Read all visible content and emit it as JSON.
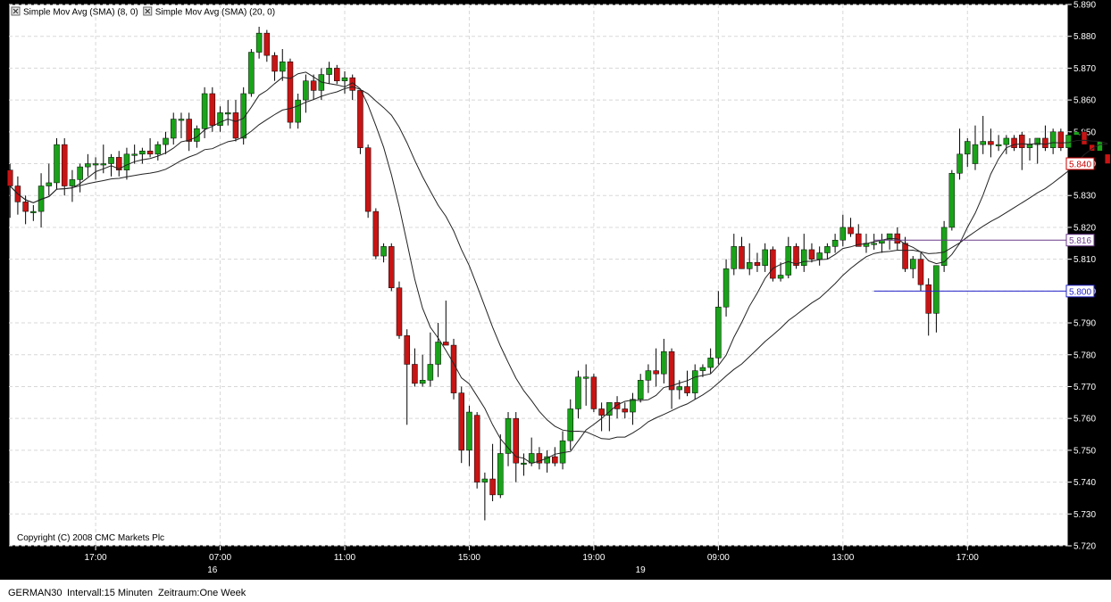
{
  "footer": {
    "symbol": "GERMAN30",
    "interval": "Intervall:15 Minuten",
    "range": "Zeitraum:One Week"
  },
  "chart_data": {
    "type": "candlestick",
    "symbol": "GERMAN30",
    "copyright": "Copyright (C) 2008 CMC Markets Plc",
    "legend": [
      {
        "label": "Simple Mov Avg (SMA) (8, 0)",
        "color": "#000000"
      },
      {
        "label": "Simple Mov Avg (SMA) (20, 0)",
        "color": "#000000"
      }
    ],
    "ylim": [
      5720,
      5890
    ],
    "y_ticks": [
      "5.720",
      "5.730",
      "5.740",
      "5.750",
      "5.760",
      "5.770",
      "5.780",
      "5.790",
      "5.800",
      "5.810",
      "5.820",
      "5.830",
      "5.840",
      "5.850",
      "5.860",
      "5.870",
      "5.880",
      "5.890"
    ],
    "x_ticks": [
      {
        "label": "17:00",
        "bar": 11
      },
      {
        "label": "07:00",
        "bar": 27
      },
      {
        "label": "11:00",
        "bar": 43
      },
      {
        "label": "15:00",
        "bar": 59
      },
      {
        "label": "19:00",
        "bar": 75
      },
      {
        "label": "09:00",
        "bar": 91
      },
      {
        "label": "13:00",
        "bar": 107
      },
      {
        "label": "17:00",
        "bar": 123
      }
    ],
    "date_labels": [
      {
        "label": "16",
        "bar": 26
      },
      {
        "label": "19",
        "bar": 81
      }
    ],
    "price_markers": [
      {
        "label": "5.840",
        "value": 5840,
        "color": "#cc0000"
      },
      {
        "label": "5.816",
        "value": 5816,
        "color": "#6b3a8a",
        "line_from_bar": 111
      },
      {
        "label": "5.800",
        "value": 5800,
        "color": "#2323c8",
        "line_from_bar": 111
      }
    ],
    "candle_colors": {
      "up": "#1aa31a",
      "down": "#c81414",
      "wick": "#000000"
    },
    "candles": [
      {
        "o": 5838,
        "h": 5840,
        "l": 5823,
        "c": 5833
      },
      {
        "o": 5833,
        "h": 5836,
        "l": 5824,
        "c": 5828
      },
      {
        "o": 5828,
        "h": 5830,
        "l": 5821,
        "c": 5825
      },
      {
        "o": 5825,
        "h": 5827,
        "l": 5822,
        "c": 5825
      },
      {
        "o": 5825,
        "h": 5837,
        "l": 5820,
        "c": 5833
      },
      {
        "o": 5833,
        "h": 5840,
        "l": 5830,
        "c": 5834
      },
      {
        "o": 5834,
        "h": 5848,
        "l": 5832,
        "c": 5846
      },
      {
        "o": 5846,
        "h": 5848,
        "l": 5830,
        "c": 5833
      },
      {
        "o": 5833,
        "h": 5838,
        "l": 5828,
        "c": 5835
      },
      {
        "o": 5835,
        "h": 5840,
        "l": 5831,
        "c": 5839
      },
      {
        "o": 5839,
        "h": 5843,
        "l": 5836,
        "c": 5840
      },
      {
        "o": 5840,
        "h": 5842,
        "l": 5835,
        "c": 5840
      },
      {
        "o": 5840,
        "h": 5846,
        "l": 5837,
        "c": 5840
      },
      {
        "o": 5840,
        "h": 5843,
        "l": 5836,
        "c": 5842
      },
      {
        "o": 5842,
        "h": 5844,
        "l": 5836,
        "c": 5838
      },
      {
        "o": 5838,
        "h": 5845,
        "l": 5835,
        "c": 5843
      },
      {
        "o": 5843,
        "h": 5846,
        "l": 5840,
        "c": 5843
      },
      {
        "o": 5843,
        "h": 5845,
        "l": 5840,
        "c": 5844
      },
      {
        "o": 5844,
        "h": 5848,
        "l": 5842,
        "c": 5843
      },
      {
        "o": 5843,
        "h": 5847,
        "l": 5841,
        "c": 5846
      },
      {
        "o": 5846,
        "h": 5850,
        "l": 5843,
        "c": 5848
      },
      {
        "o": 5848,
        "h": 5856,
        "l": 5846,
        "c": 5854
      },
      {
        "o": 5854,
        "h": 5856,
        "l": 5848,
        "c": 5854
      },
      {
        "o": 5854,
        "h": 5856,
        "l": 5844,
        "c": 5847
      },
      {
        "o": 5847,
        "h": 5852,
        "l": 5845,
        "c": 5851
      },
      {
        "o": 5851,
        "h": 5864,
        "l": 5848,
        "c": 5862
      },
      {
        "o": 5862,
        "h": 5864,
        "l": 5850,
        "c": 5852
      },
      {
        "o": 5852,
        "h": 5858,
        "l": 5850,
        "c": 5856
      },
      {
        "o": 5856,
        "h": 5860,
        "l": 5852,
        "c": 5856
      },
      {
        "o": 5856,
        "h": 5860,
        "l": 5847,
        "c": 5848
      },
      {
        "o": 5848,
        "h": 5864,
        "l": 5846,
        "c": 5862
      },
      {
        "o": 5862,
        "h": 5876,
        "l": 5861,
        "c": 5875
      },
      {
        "o": 5875,
        "h": 5883,
        "l": 5873,
        "c": 5881
      },
      {
        "o": 5881,
        "h": 5882,
        "l": 5872,
        "c": 5874
      },
      {
        "o": 5874,
        "h": 5875,
        "l": 5866,
        "c": 5869
      },
      {
        "o": 5869,
        "h": 5876,
        "l": 5866,
        "c": 5872
      },
      {
        "o": 5872,
        "h": 5873,
        "l": 5851,
        "c": 5853
      },
      {
        "o": 5853,
        "h": 5862,
        "l": 5851,
        "c": 5860
      },
      {
        "o": 5860,
        "h": 5868,
        "l": 5856,
        "c": 5866
      },
      {
        "o": 5866,
        "h": 5868,
        "l": 5860,
        "c": 5863
      },
      {
        "o": 5863,
        "h": 5870,
        "l": 5860,
        "c": 5868
      },
      {
        "o": 5868,
        "h": 5872,
        "l": 5865,
        "c": 5870
      },
      {
        "o": 5870,
        "h": 5871,
        "l": 5865,
        "c": 5866
      },
      {
        "o": 5866,
        "h": 5869,
        "l": 5862,
        "c": 5867
      },
      {
        "o": 5867,
        "h": 5868,
        "l": 5860,
        "c": 5863
      },
      {
        "o": 5863,
        "h": 5863,
        "l": 5843,
        "c": 5845
      },
      {
        "o": 5845,
        "h": 5846,
        "l": 5823,
        "c": 5825
      },
      {
        "o": 5825,
        "h": 5826,
        "l": 5810,
        "c": 5811
      },
      {
        "o": 5811,
        "h": 5815,
        "l": 5809,
        "c": 5814
      },
      {
        "o": 5814,
        "h": 5815,
        "l": 5800,
        "c": 5801
      },
      {
        "o": 5801,
        "h": 5803,
        "l": 5785,
        "c": 5786
      },
      {
        "o": 5786,
        "h": 5788,
        "l": 5758,
        "c": 5777
      },
      {
        "o": 5777,
        "h": 5782,
        "l": 5770,
        "c": 5771
      },
      {
        "o": 5771,
        "h": 5780,
        "l": 5770,
        "c": 5772
      },
      {
        "o": 5772,
        "h": 5787,
        "l": 5770,
        "c": 5777
      },
      {
        "o": 5777,
        "h": 5790,
        "l": 5773,
        "c": 5784
      },
      {
        "o": 5784,
        "h": 5797,
        "l": 5783,
        "c": 5783
      },
      {
        "o": 5783,
        "h": 5785,
        "l": 5766,
        "c": 5768
      },
      {
        "o": 5768,
        "h": 5770,
        "l": 5746,
        "c": 5750
      },
      {
        "o": 5750,
        "h": 5764,
        "l": 5745,
        "c": 5762
      },
      {
        "o": 5761,
        "h": 5762,
        "l": 5738,
        "c": 5740
      },
      {
        "o": 5740,
        "h": 5743,
        "l": 5728,
        "c": 5741
      },
      {
        "o": 5741,
        "h": 5752,
        "l": 5734,
        "c": 5736
      },
      {
        "o": 5736,
        "h": 5755,
        "l": 5735,
        "c": 5749
      },
      {
        "o": 5749,
        "h": 5762,
        "l": 5745,
        "c": 5760
      },
      {
        "o": 5760,
        "h": 5762,
        "l": 5740,
        "c": 5746
      },
      {
        "o": 5746,
        "h": 5749,
        "l": 5742,
        "c": 5746
      },
      {
        "o": 5746,
        "h": 5754,
        "l": 5745,
        "c": 5749
      },
      {
        "o": 5749,
        "h": 5751,
        "l": 5744,
        "c": 5746
      },
      {
        "o": 5746,
        "h": 5750,
        "l": 5743,
        "c": 5748
      },
      {
        "o": 5748,
        "h": 5751,
        "l": 5745,
        "c": 5746
      },
      {
        "o": 5746,
        "h": 5756,
        "l": 5744,
        "c": 5753
      },
      {
        "o": 5753,
        "h": 5766,
        "l": 5750,
        "c": 5763
      },
      {
        "o": 5763,
        "h": 5775,
        "l": 5760,
        "c": 5773
      },
      {
        "o": 5773,
        "h": 5777,
        "l": 5764,
        "c": 5773
      },
      {
        "o": 5773,
        "h": 5774,
        "l": 5762,
        "c": 5763
      },
      {
        "o": 5763,
        "h": 5765,
        "l": 5756,
        "c": 5761
      },
      {
        "o": 5761,
        "h": 5765,
        "l": 5756,
        "c": 5765
      },
      {
        "o": 5765,
        "h": 5767,
        "l": 5760,
        "c": 5763
      },
      {
        "o": 5763,
        "h": 5765,
        "l": 5760,
        "c": 5762
      },
      {
        "o": 5762,
        "h": 5768,
        "l": 5758,
        "c": 5766
      },
      {
        "o": 5766,
        "h": 5774,
        "l": 5765,
        "c": 5772
      },
      {
        "o": 5772,
        "h": 5777,
        "l": 5768,
        "c": 5775
      },
      {
        "o": 5775,
        "h": 5782,
        "l": 5770,
        "c": 5774
      },
      {
        "o": 5774,
        "h": 5785,
        "l": 5771,
        "c": 5781
      },
      {
        "o": 5781,
        "h": 5782,
        "l": 5763,
        "c": 5769
      },
      {
        "o": 5769,
        "h": 5772,
        "l": 5766,
        "c": 5770
      },
      {
        "o": 5770,
        "h": 5775,
        "l": 5767,
        "c": 5768
      },
      {
        "o": 5768,
        "h": 5777,
        "l": 5766,
        "c": 5775
      },
      {
        "o": 5775,
        "h": 5777,
        "l": 5773,
        "c": 5776
      },
      {
        "o": 5776,
        "h": 5782,
        "l": 5774,
        "c": 5779
      },
      {
        "o": 5779,
        "h": 5800,
        "l": 5777,
        "c": 5795
      },
      {
        "o": 5795,
        "h": 5810,
        "l": 5792,
        "c": 5807
      },
      {
        "o": 5807,
        "h": 5818,
        "l": 5805,
        "c": 5814
      },
      {
        "o": 5814,
        "h": 5817,
        "l": 5807,
        "c": 5807
      },
      {
        "o": 5807,
        "h": 5815,
        "l": 5805,
        "c": 5809
      },
      {
        "o": 5809,
        "h": 5812,
        "l": 5806,
        "c": 5808
      },
      {
        "o": 5808,
        "h": 5815,
        "l": 5806,
        "c": 5813
      },
      {
        "o": 5813,
        "h": 5814,
        "l": 5803,
        "c": 5804
      },
      {
        "o": 5804,
        "h": 5809,
        "l": 5803,
        "c": 5805
      },
      {
        "o": 5805,
        "h": 5817,
        "l": 5804,
        "c": 5814
      },
      {
        "o": 5814,
        "h": 5815,
        "l": 5807,
        "c": 5808
      },
      {
        "o": 5808,
        "h": 5818,
        "l": 5806,
        "c": 5813
      },
      {
        "o": 5813,
        "h": 5815,
        "l": 5809,
        "c": 5810
      },
      {
        "o": 5810,
        "h": 5814,
        "l": 5808,
        "c": 5812
      },
      {
        "o": 5812,
        "h": 5815,
        "l": 5810,
        "c": 5814
      },
      {
        "o": 5814,
        "h": 5818,
        "l": 5812,
        "c": 5816
      },
      {
        "o": 5816,
        "h": 5824,
        "l": 5814,
        "c": 5820
      },
      {
        "o": 5820,
        "h": 5823,
        "l": 5817,
        "c": 5818
      },
      {
        "o": 5818,
        "h": 5821,
        "l": 5814,
        "c": 5814
      },
      {
        "o": 5814,
        "h": 5818,
        "l": 5812,
        "c": 5815
      },
      {
        "o": 5815,
        "h": 5818,
        "l": 5813,
        "c": 5815
      },
      {
        "o": 5815,
        "h": 5818,
        "l": 5812,
        "c": 5816
      },
      {
        "o": 5816,
        "h": 5817,
        "l": 5813,
        "c": 5818
      },
      {
        "o": 5818,
        "h": 5820,
        "l": 5813,
        "c": 5815
      },
      {
        "o": 5815,
        "h": 5817,
        "l": 5806,
        "c": 5807
      },
      {
        "o": 5807,
        "h": 5811,
        "l": 5804,
        "c": 5810
      },
      {
        "o": 5810,
        "h": 5812,
        "l": 5800,
        "c": 5802
      },
      {
        "o": 5802,
        "h": 5804,
        "l": 5786,
        "c": 5793
      },
      {
        "o": 5793,
        "h": 5808,
        "l": 5787,
        "c": 5808
      },
      {
        "o": 5808,
        "h": 5822,
        "l": 5806,
        "c": 5820
      },
      {
        "o": 5820,
        "h": 5838,
        "l": 5819,
        "c": 5837
      },
      {
        "o": 5837,
        "h": 5851,
        "l": 5835,
        "c": 5843
      },
      {
        "o": 5843,
        "h": 5848,
        "l": 5839,
        "c": 5847
      },
      {
        "o": 5840,
        "h": 5852,
        "l": 5838,
        "c": 5846
      },
      {
        "o": 5846,
        "h": 5855,
        "l": 5843,
        "c": 5847
      },
      {
        "o": 5847,
        "h": 5851,
        "l": 5842,
        "c": 5846
      },
      {
        "o": 5846,
        "h": 5849,
        "l": 5844,
        "c": 5846
      },
      {
        "o": 5846,
        "h": 5849,
        "l": 5843,
        "c": 5848
      },
      {
        "o": 5848,
        "h": 5849,
        "l": 5844,
        "c": 5845
      },
      {
        "o": 5849,
        "h": 5850,
        "l": 5838,
        "c": 5845
      },
      {
        "o": 5845,
        "h": 5848,
        "l": 5841,
        "c": 5846
      },
      {
        "o": 5846,
        "h": 5848,
        "l": 5840,
        "c": 5848
      },
      {
        "o": 5848,
        "h": 5852,
        "l": 5844,
        "c": 5845
      },
      {
        "o": 5845,
        "h": 5851,
        "l": 5843,
        "c": 5850
      },
      {
        "o": 5850,
        "h": 5851,
        "l": 5844,
        "c": 5845
      },
      {
        "o": 5845,
        "h": 5850,
        "l": 5843,
        "c": 5849
      },
      {
        "o": 5849,
        "h": 5850,
        "l": 5844,
        "c": 5850
      },
      {
        "o": 5850,
        "h": 5851,
        "l": 5844,
        "c": 5846
      },
      {
        "o": 5846,
        "h": 5849,
        "l": 5843,
        "c": 5844
      },
      {
        "o": 5844,
        "h": 5848,
        "l": 5843,
        "c": 5847
      },
      {
        "o": 5843,
        "h": 5844,
        "l": 5839,
        "c": 5840
      }
    ]
  }
}
